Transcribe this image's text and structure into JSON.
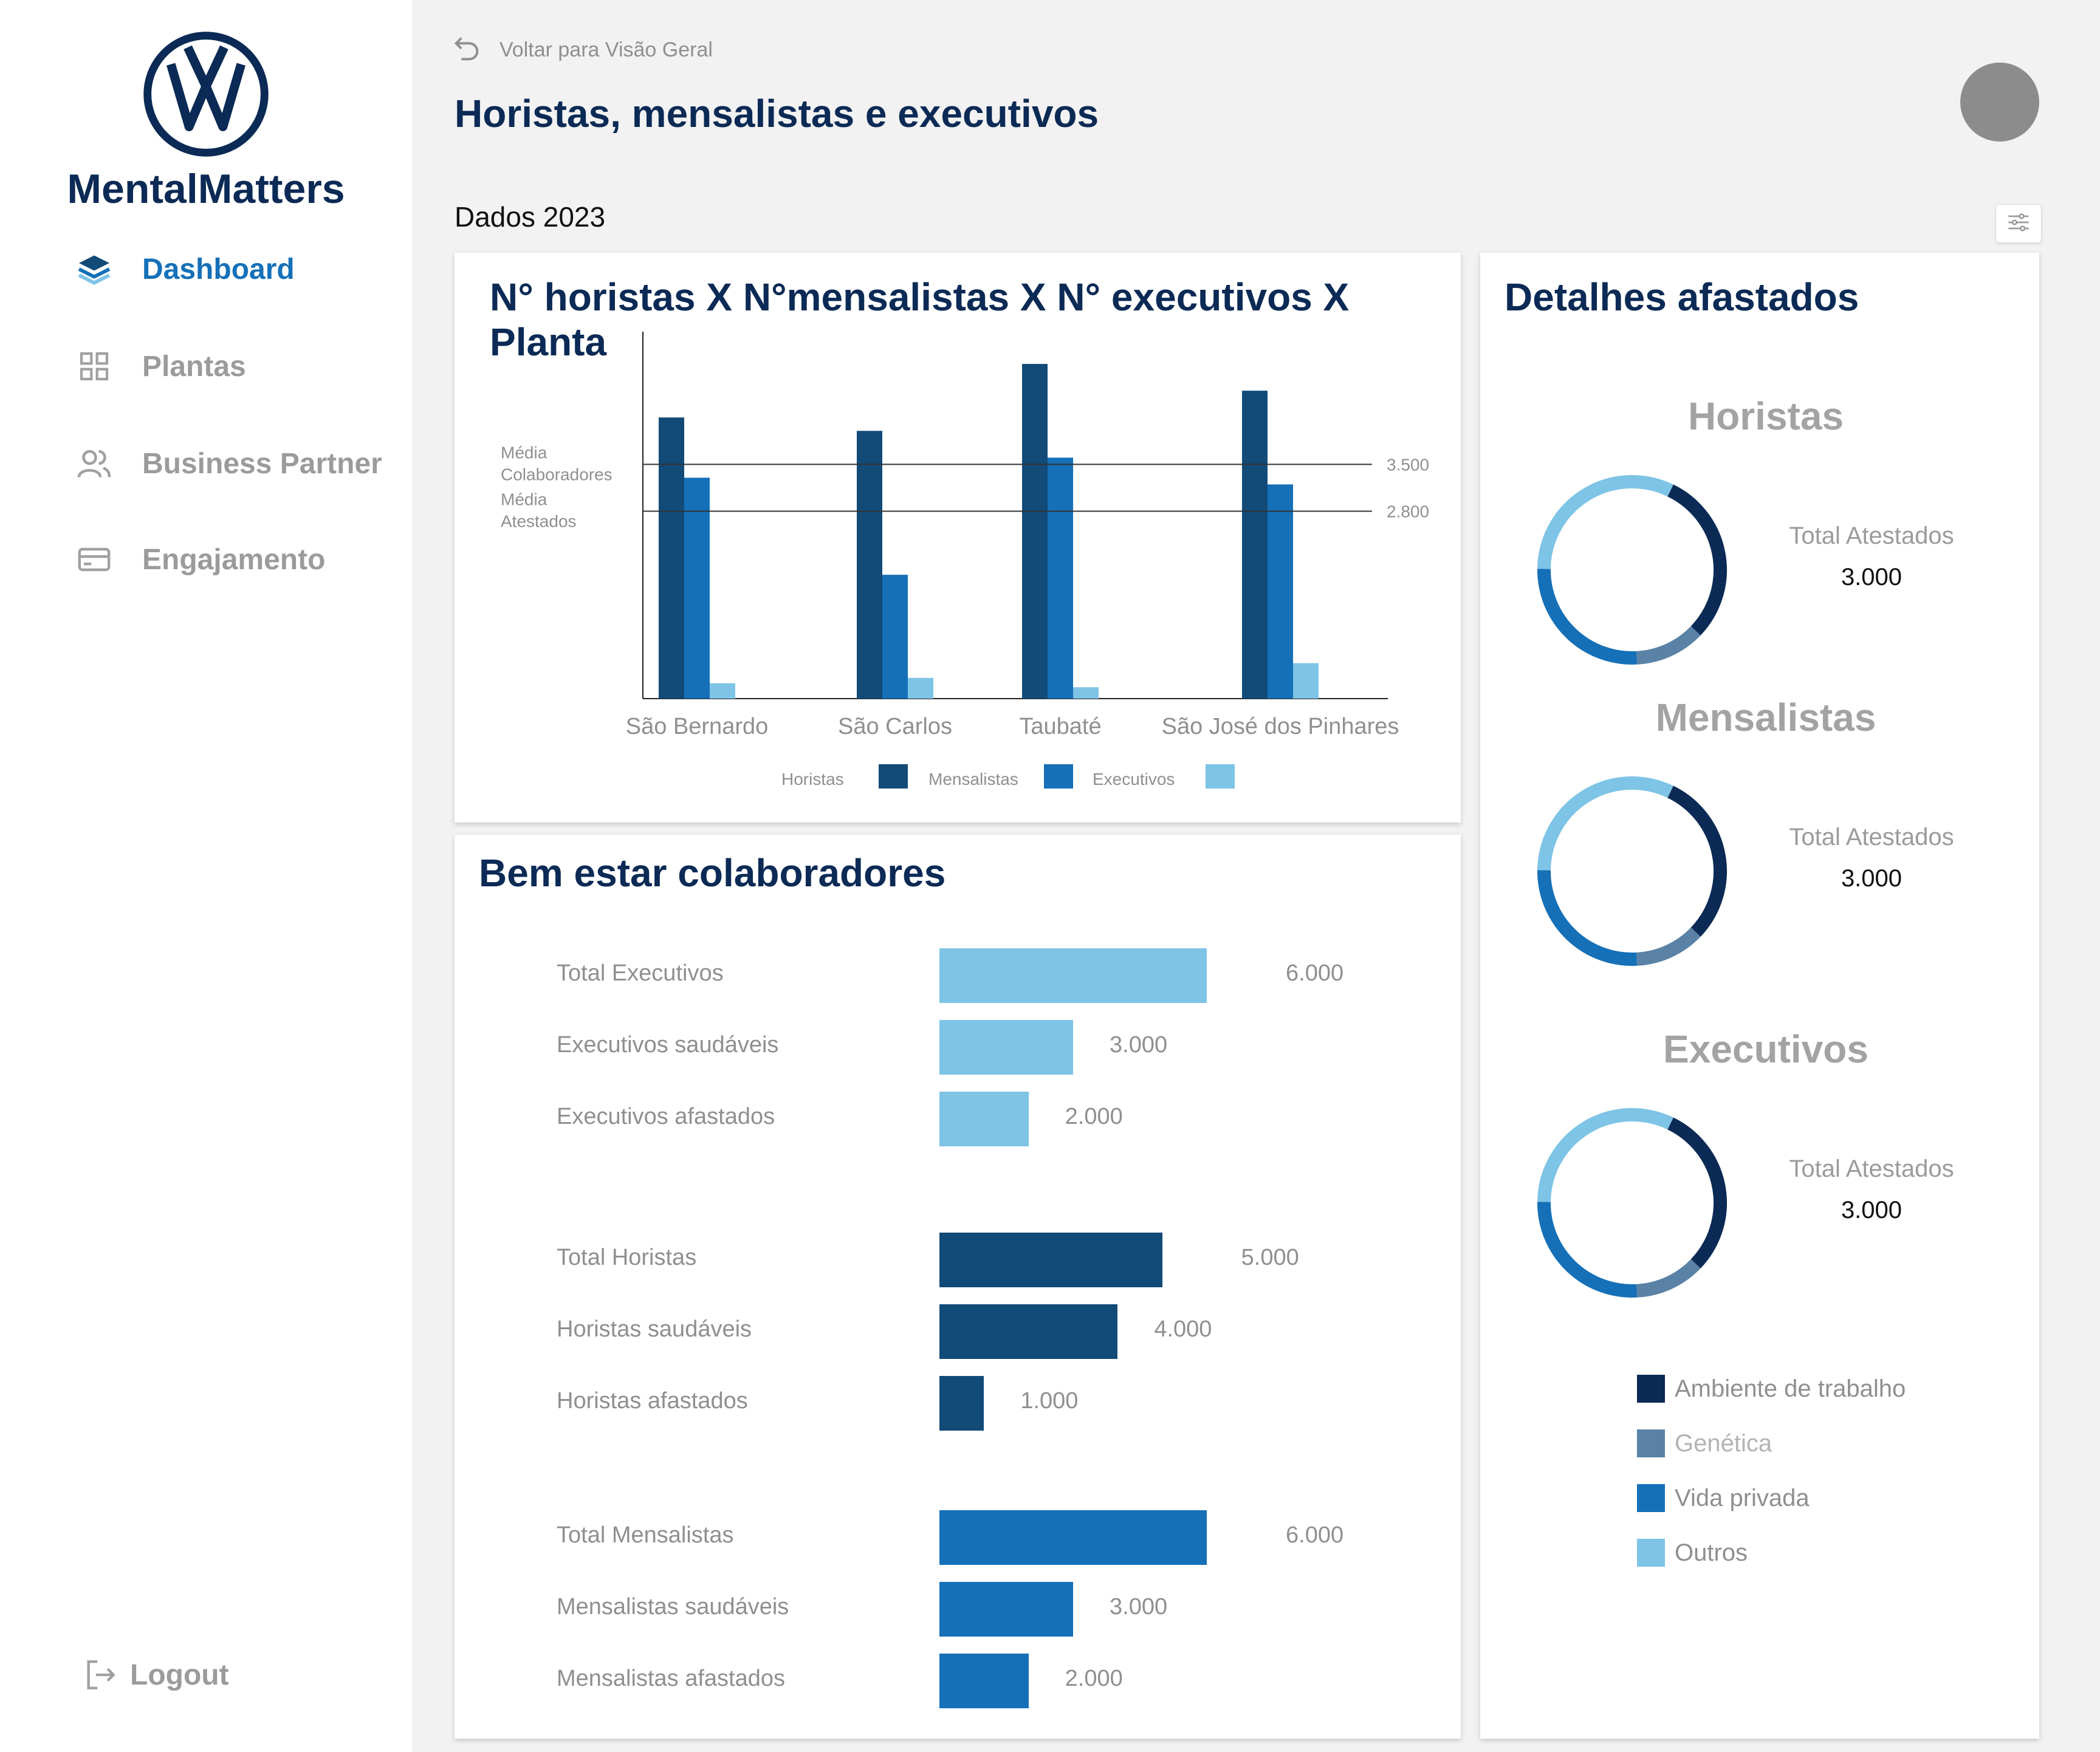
{
  "brand": {
    "name": "MentalMatters"
  },
  "nav": {
    "items": [
      {
        "label": "Dashboard",
        "icon": "layers-icon",
        "active": true
      },
      {
        "label": "Plantas",
        "icon": "grid-icon"
      },
      {
        "label": "Business Partner",
        "icon": "users-icon"
      },
      {
        "label": "Engajamento",
        "icon": "card-icon"
      }
    ],
    "logout": "Logout"
  },
  "header": {
    "back_label": "Voltar para Visão Geral",
    "title": "Horistas, mensalistas e executivos",
    "year_label": "Dados 2023"
  },
  "colors": {
    "horistas": "#124a78",
    "mensalistas": "#1570b8",
    "executivos": "#7ec4e6",
    "navy": "#0b2a55",
    "genetica": "#5a82a6"
  },
  "chart_data": [
    {
      "type": "bar",
      "title": "N° horistas X N°mensalistas X N° executivos X Planta",
      "categories": [
        "São Bernardo",
        "São Carlos",
        "Taubaté",
        "São José dos Pinhares"
      ],
      "series": [
        {
          "name": "Horistas",
          "values": [
            4200,
            4000,
            5000,
            4600
          ]
        },
        {
          "name": "Mensalistas",
          "values": [
            3300,
            1850,
            3600,
            3200
          ]
        },
        {
          "name": "Executivos",
          "values": [
            230,
            310,
            170,
            530
          ]
        }
      ],
      "reference_lines": [
        {
          "label": "Média Colaboradores",
          "value": 3500,
          "value_label": "3.500"
        },
        {
          "label": "Média Atestados",
          "value": 2800,
          "value_label": "2.800"
        }
      ],
      "ylim": [
        0,
        5300
      ],
      "legend": "bottom"
    },
    {
      "type": "bar",
      "title": "Bem estar colaboradores",
      "orientation": "horizontal",
      "groups": [
        {
          "name": "Executivos",
          "rows": [
            {
              "label": "Total Executivos",
              "value": 6000,
              "value_label": "6.000"
            },
            {
              "label": "Executivos saudáveis",
              "value": 3000,
              "value_label": "3.000"
            },
            {
              "label": "Executivos afastados",
              "value": 2000,
              "value_label": "2.000"
            }
          ]
        },
        {
          "name": "Horistas",
          "rows": [
            {
              "label": "Total Horistas",
              "value": 5000,
              "value_label": "5.000"
            },
            {
              "label": "Horistas saudáveis",
              "value": 4000,
              "value_label": "4.000"
            },
            {
              "label": "Horistas afastados",
              "value": 1000,
              "value_label": "1.000"
            }
          ]
        },
        {
          "name": "Mensalistas",
          "rows": [
            {
              "label": "Total Mensalistas",
              "value": 6000,
              "value_label": "6.000"
            },
            {
              "label": "Mensalistas saudáveis",
              "value": 3000,
              "value_label": "3.000"
            },
            {
              "label": "Mensalistas afastados",
              "value": 2000,
              "value_label": "2.000"
            }
          ]
        }
      ]
    },
    {
      "type": "pie",
      "title": "Detalhes afastados",
      "donuts": [
        {
          "name": "Horistas",
          "total_label": "Total Atestados",
          "total_value": "3.000"
        },
        {
          "name": "Mensalistas",
          "total_label": "Total Atestados",
          "total_value": "3.000"
        },
        {
          "name": "Executivos",
          "total_label": "Total Atestados",
          "total_value": "3.000"
        }
      ],
      "slices": [
        {
          "name": "Ambiente de trabalho",
          "value": 30,
          "color": "#0b2a55"
        },
        {
          "name": "Genética",
          "value": 12,
          "color": "#5a82a6"
        },
        {
          "name": "Vida privada",
          "value": 26,
          "color": "#1570b8"
        },
        {
          "name": "Outros",
          "value": 32,
          "color": "#7ec4e6"
        }
      ],
      "legend": "bottom"
    }
  ]
}
